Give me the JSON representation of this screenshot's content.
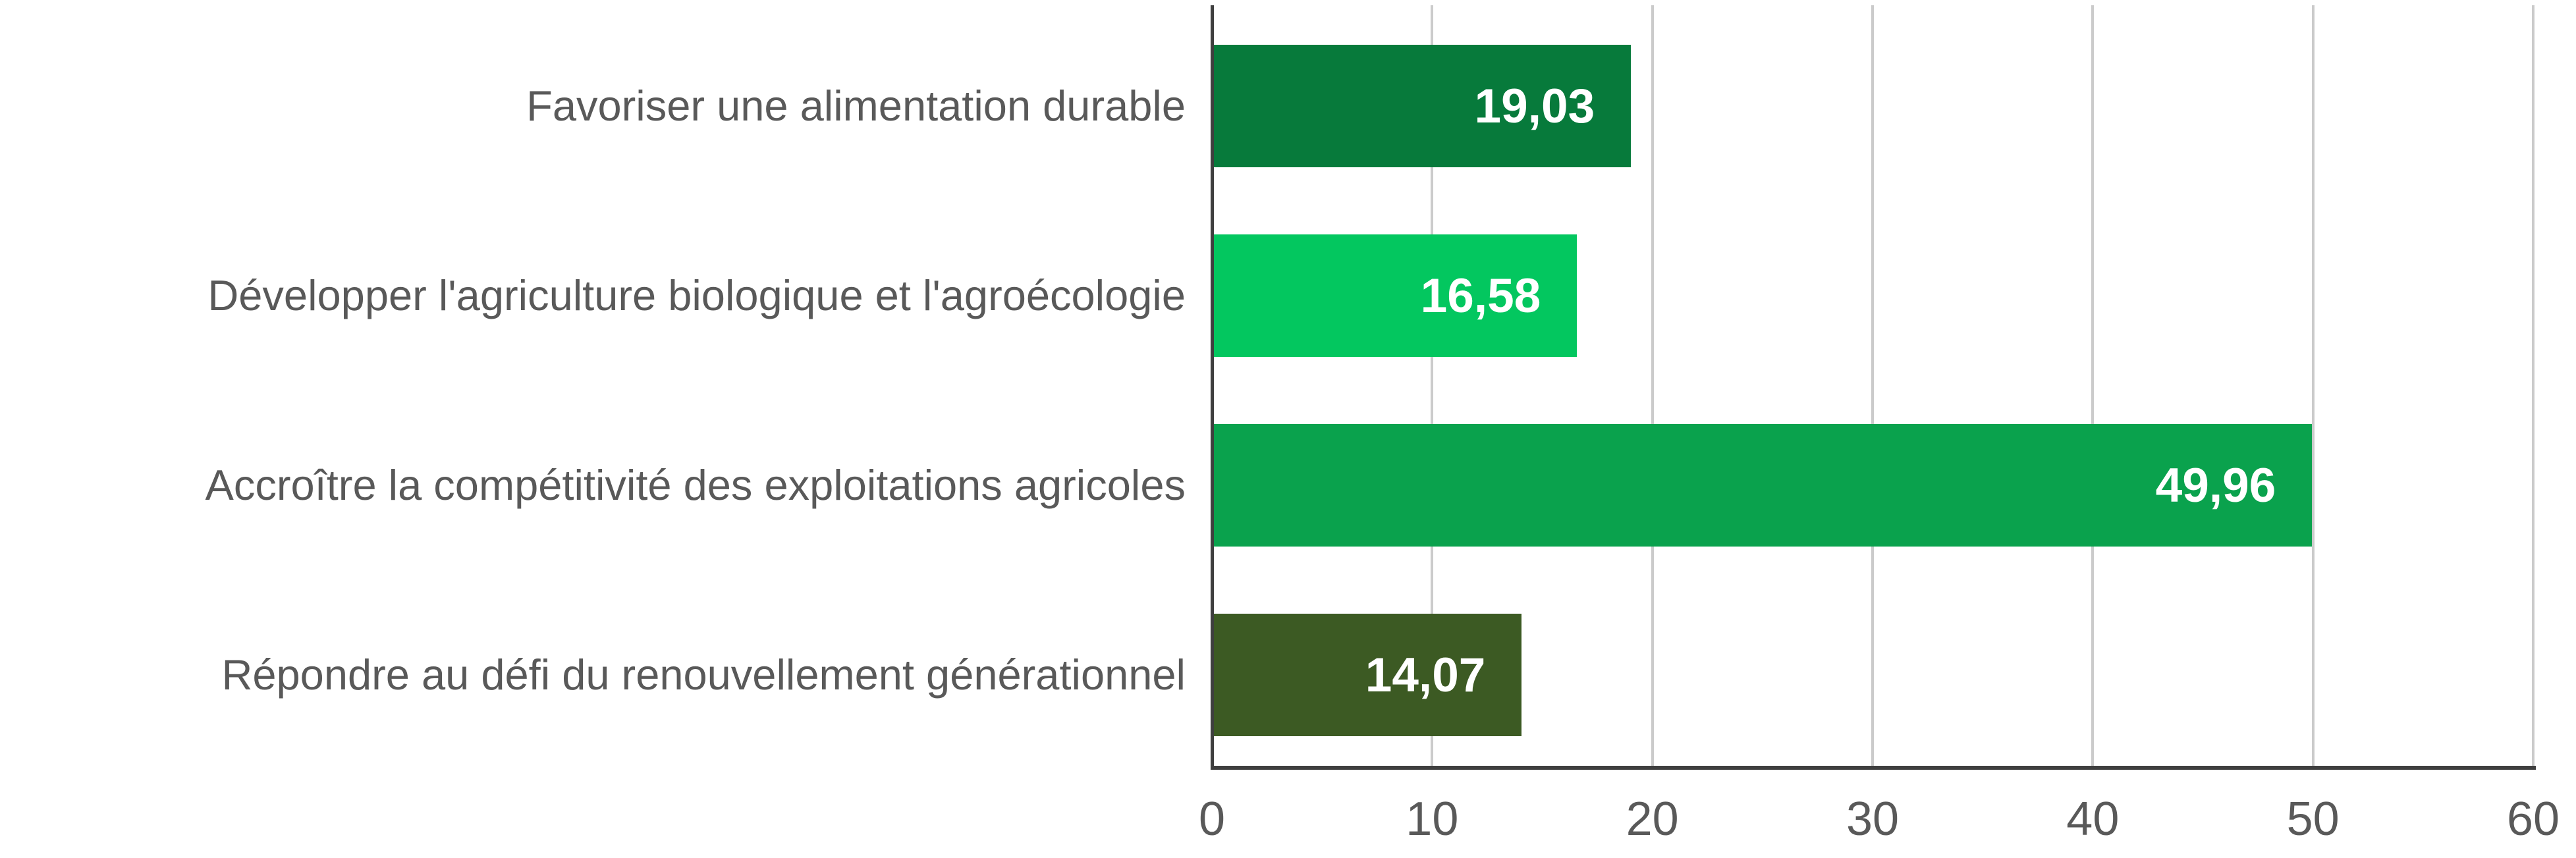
{
  "chart_data": {
    "type": "bar",
    "orientation": "horizontal",
    "title": "",
    "categories": [
      "Favoriser une alimentation durable",
      "Développer l'agriculture biologique et l'agroécologie",
      "Accroître la compétitivité des exploitations agricoles",
      "Répondre au défi du renouvellement générationnel"
    ],
    "values": [
      19.03,
      16.58,
      49.96,
      14.07
    ],
    "value_labels": [
      "19,03",
      "16,58",
      "49,96",
      "14,07"
    ],
    "bar_colors": [
      "#077A3B",
      "#03C75F",
      "#0AA24D",
      "#3C5A23"
    ],
    "xlabel": "",
    "ylabel": "",
    "xlim": [
      0,
      60
    ],
    "x_ticks": [
      0,
      10,
      20,
      30,
      40,
      50,
      60
    ],
    "grid": true,
    "legend": false
  },
  "colors": {
    "background": "#FFFFFF",
    "gridline": "#CBCBCB",
    "axis_line": "#3F3F3F",
    "tick_label": "#595959",
    "category_label": "#595959",
    "value_label": "#FFFFFF"
  }
}
